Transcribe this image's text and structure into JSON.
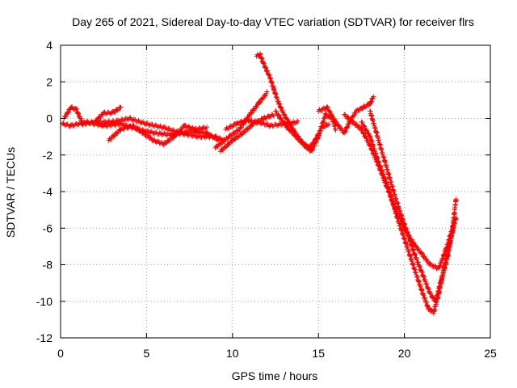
{
  "chart_data": {
    "type": "scatter",
    "title": "Day 265 of 2021, Sidereal Day-to-day VTEC variation (SDTVAR) for receiver flrs",
    "xlabel": "GPS time / hours",
    "ylabel": "SDTVAR / TECUs",
    "xlim": [
      0,
      25
    ],
    "ylim": [
      -12,
      4
    ],
    "x_ticks": [
      0,
      5,
      10,
      15,
      20,
      25
    ],
    "y_ticks": [
      4,
      2,
      0,
      -2,
      -4,
      -6,
      -8,
      -10,
      -12
    ],
    "grid": true,
    "marker": "+",
    "series": [
      {
        "color": "#ff0000",
        "tracks": [
          [
            [
              0.2,
              0.0
            ],
            [
              0.6,
              0.6
            ],
            [
              0.9,
              0.5
            ],
            [
              1.3,
              -0.3
            ],
            [
              2.0,
              -0.2
            ],
            [
              2.5,
              0.3
            ],
            [
              3.0,
              0.3
            ],
            [
              3.5,
              0.6
            ]
          ],
          [
            [
              0.1,
              -0.3
            ],
            [
              0.6,
              -0.4
            ],
            [
              1.5,
              -0.2
            ],
            [
              2.5,
              -0.4
            ],
            [
              3.5,
              -0.3
            ],
            [
              4.5,
              -0.6
            ],
            [
              5.5,
              -0.8
            ],
            [
              6.5,
              -0.9
            ],
            [
              7.5,
              -0.7
            ],
            [
              8.5,
              -0.8
            ],
            [
              9.2,
              -1.2
            ]
          ],
          [
            [
              2.8,
              -1.2
            ],
            [
              3.5,
              -0.6
            ],
            [
              4.2,
              -0.4
            ],
            [
              4.8,
              -0.8
            ],
            [
              5.4,
              -1.2
            ],
            [
              6.0,
              -1.4
            ],
            [
              6.6,
              -1.0
            ],
            [
              7.2,
              -0.4
            ],
            [
              7.8,
              -0.6
            ],
            [
              8.5,
              -0.5
            ]
          ],
          [
            [
              2.0,
              -0.2
            ],
            [
              3.0,
              -0.2
            ],
            [
              4.0,
              0.0
            ],
            [
              5.0,
              -0.3
            ],
            [
              6.0,
              -0.5
            ],
            [
              7.0,
              -0.8
            ],
            [
              8.0,
              -1.0
            ],
            [
              9.0,
              -1.0
            ],
            [
              9.5,
              -1.2
            ]
          ],
          [
            [
              9.0,
              -1.6
            ],
            [
              9.8,
              -1.0
            ],
            [
              10.4,
              -0.6
            ],
            [
              11.0,
              0.2
            ],
            [
              11.5,
              0.8
            ],
            [
              12.0,
              1.4
            ]
          ],
          [
            [
              9.3,
              -1.8
            ],
            [
              10.0,
              -1.2
            ],
            [
              10.6,
              -0.8
            ],
            [
              11.2,
              -0.3
            ],
            [
              11.8,
              0.0
            ],
            [
              12.4,
              0.2
            ]
          ],
          [
            [
              9.6,
              -0.6
            ],
            [
              10.2,
              -0.3
            ],
            [
              10.8,
              -0.1
            ],
            [
              11.5,
              -0.2
            ],
            [
              12.2,
              -0.4
            ],
            [
              13.0,
              -0.3
            ],
            [
              13.8,
              -0.2
            ]
          ],
          [
            [
              11.4,
              3.4
            ],
            [
              11.6,
              3.5
            ],
            [
              11.8,
              3.0
            ],
            [
              12.0,
              2.6
            ],
            [
              12.2,
              2.2
            ],
            [
              12.4,
              1.6
            ],
            [
              12.7,
              0.8
            ],
            [
              13.0,
              0.2
            ],
            [
              13.4,
              -0.4
            ],
            [
              13.8,
              -1.0
            ],
            [
              14.2,
              -1.5
            ],
            [
              14.6,
              -1.8
            ],
            [
              15.0,
              -1.0
            ],
            [
              15.4,
              0.2
            ],
            [
              15.8,
              0.0
            ],
            [
              16.0,
              -0.6
            ]
          ],
          [
            [
              12.5,
              0.4
            ],
            [
              13.0,
              -0.3
            ],
            [
              13.5,
              -0.8
            ],
            [
              14.0,
              -1.3
            ],
            [
              14.5,
              -1.6
            ],
            [
              14.8,
              -1.2
            ],
            [
              15.2,
              -0.5
            ],
            [
              15.6,
              -0.3
            ]
          ],
          [
            [
              15.0,
              0.4
            ],
            [
              15.5,
              0.6
            ],
            [
              16.0,
              -0.2
            ],
            [
              16.5,
              -0.8
            ],
            [
              16.8,
              -0.2
            ],
            [
              17.2,
              0.4
            ],
            [
              17.6,
              0.6
            ],
            [
              18.0,
              0.8
            ],
            [
              18.2,
              1.2
            ]
          ],
          [
            [
              16.5,
              0.2
            ],
            [
              17.0,
              -0.2
            ],
            [
              17.5,
              -0.6
            ],
            [
              18.0,
              -1.5
            ],
            [
              18.5,
              -2.6
            ],
            [
              19.0,
              -3.8
            ],
            [
              19.5,
              -5.0
            ],
            [
              20.0,
              -6.0
            ],
            [
              20.5,
              -6.8
            ],
            [
              21.0,
              -7.4
            ],
            [
              21.5,
              -8.0
            ],
            [
              22.0,
              -8.2
            ],
            [
              22.4,
              -7.2
            ],
            [
              22.8,
              -6.0
            ],
            [
              23.0,
              -4.4
            ]
          ],
          [
            [
              17.5,
              -0.2
            ],
            [
              18.0,
              -1.0
            ],
            [
              18.5,
              -2.4
            ],
            [
              19.0,
              -3.6
            ],
            [
              19.5,
              -5.2
            ],
            [
              20.0,
              -6.6
            ],
            [
              20.5,
              -8.0
            ],
            [
              21.0,
              -9.4
            ],
            [
              21.4,
              -10.4
            ],
            [
              21.7,
              -10.6
            ],
            [
              22.0,
              -9.6
            ],
            [
              22.3,
              -8.2
            ],
            [
              22.6,
              -7.0
            ],
            [
              23.0,
              -5.4
            ]
          ],
          [
            [
              18.0,
              0.4
            ],
            [
              18.5,
              -1.2
            ],
            [
              19.0,
              -2.8
            ],
            [
              19.5,
              -4.4
            ],
            [
              20.0,
              -5.8
            ],
            [
              20.5,
              -7.2
            ],
            [
              21.0,
              -8.4
            ],
            [
              21.5,
              -9.6
            ],
            [
              21.8,
              -10.0
            ],
            [
              22.1,
              -9.0
            ],
            [
              22.5,
              -7.6
            ],
            [
              22.9,
              -5.6
            ]
          ]
        ]
      }
    ]
  }
}
